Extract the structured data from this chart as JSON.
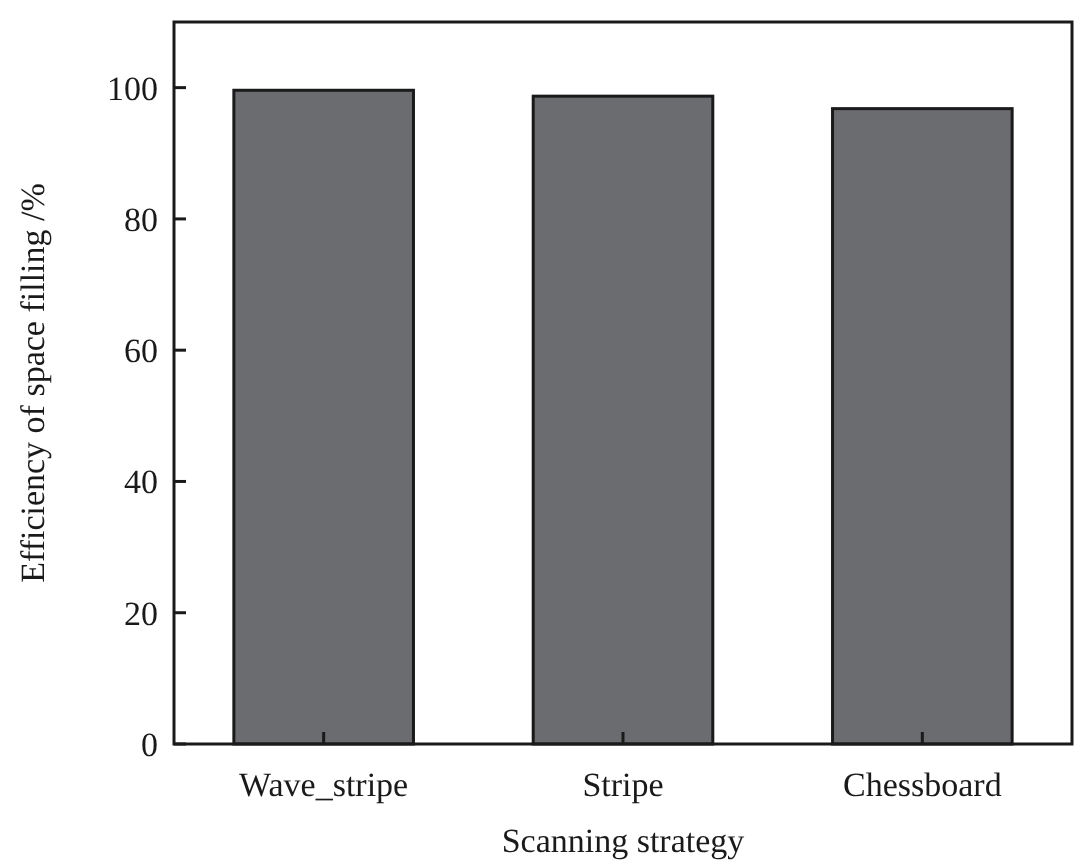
{
  "chart_data": {
    "type": "bar",
    "xlabel": "Scanning strategy",
    "ylabel": "Efficiency of space filling /%",
    "categories": [
      "Wave_stripe",
      "Stripe",
      "Chessboard"
    ],
    "values": [
      99.6,
      98.7,
      96.8
    ],
    "color": "#6b6c70",
    "ylim": [
      0,
      110
    ],
    "yticks": [
      0,
      20,
      40,
      60,
      80,
      100
    ],
    "grid": false
  }
}
